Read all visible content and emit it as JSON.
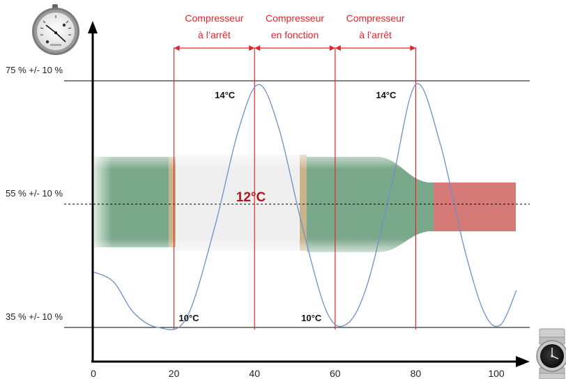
{
  "colors": {
    "axis": "#000000",
    "curve": "#6f8fc8",
    "marker": "#e0262a",
    "phase_text": "#e0262a",
    "center_temp": "#b5141e",
    "guide": "#000000",
    "bottle_green": "#7aa88a",
    "bottle_red": "#d67a78",
    "label_gold": "#c8b48a"
  },
  "icons": {
    "hygrometer": "hygrometer-icon",
    "clock": "wristwatch-icon"
  },
  "chart_data": {
    "type": "line",
    "x_ticks": [
      "0",
      "20",
      "40",
      "60",
      "80",
      "100"
    ],
    "xlim": [
      0,
      100
    ],
    "y_levels": [
      {
        "label": "75 % +/- 10 %",
        "value": 75
      },
      {
        "label": "55 % +/- 10 %",
        "value": 55
      },
      {
        "label": "35 % +/- 10 %",
        "value": 35
      }
    ],
    "series": [
      {
        "x": [
          0,
          5,
          10,
          16,
          23,
          30,
          36,
          41,
          46,
          52,
          58,
          63,
          68,
          74,
          80,
          86,
          92,
          97,
          101,
          105
        ],
        "y": [
          44,
          42.4,
          37.4,
          35,
          36.4,
          51,
          67,
          74.4,
          67.4,
          51,
          37.4,
          35.6,
          42,
          58,
          74.4,
          65,
          48,
          37.4,
          35.4,
          41
        ]
      }
    ],
    "vertical_markers": [
      20,
      40,
      60,
      80
    ],
    "phases": [
      {
        "line1": "Compresseur",
        "line2": "à l’arrêt",
        "from": 20,
        "to": 40
      },
      {
        "line1": "Compresseur",
        "line2": "en fonction",
        "from": 40,
        "to": 60
      },
      {
        "line1": "Compresseur",
        "line2": "à l’arrêt",
        "from": 60,
        "to": 80
      }
    ],
    "annotations": [
      {
        "text": "14°C",
        "x": 40,
        "y": 73.5
      },
      {
        "text": "14°C",
        "x": 80,
        "y": 73.5
      },
      {
        "text": "10°C",
        "x": 16,
        "y": 36.5
      },
      {
        "text": "10°C",
        "x": 58,
        "y": 36.5
      }
    ],
    "center_label": "12°C"
  }
}
